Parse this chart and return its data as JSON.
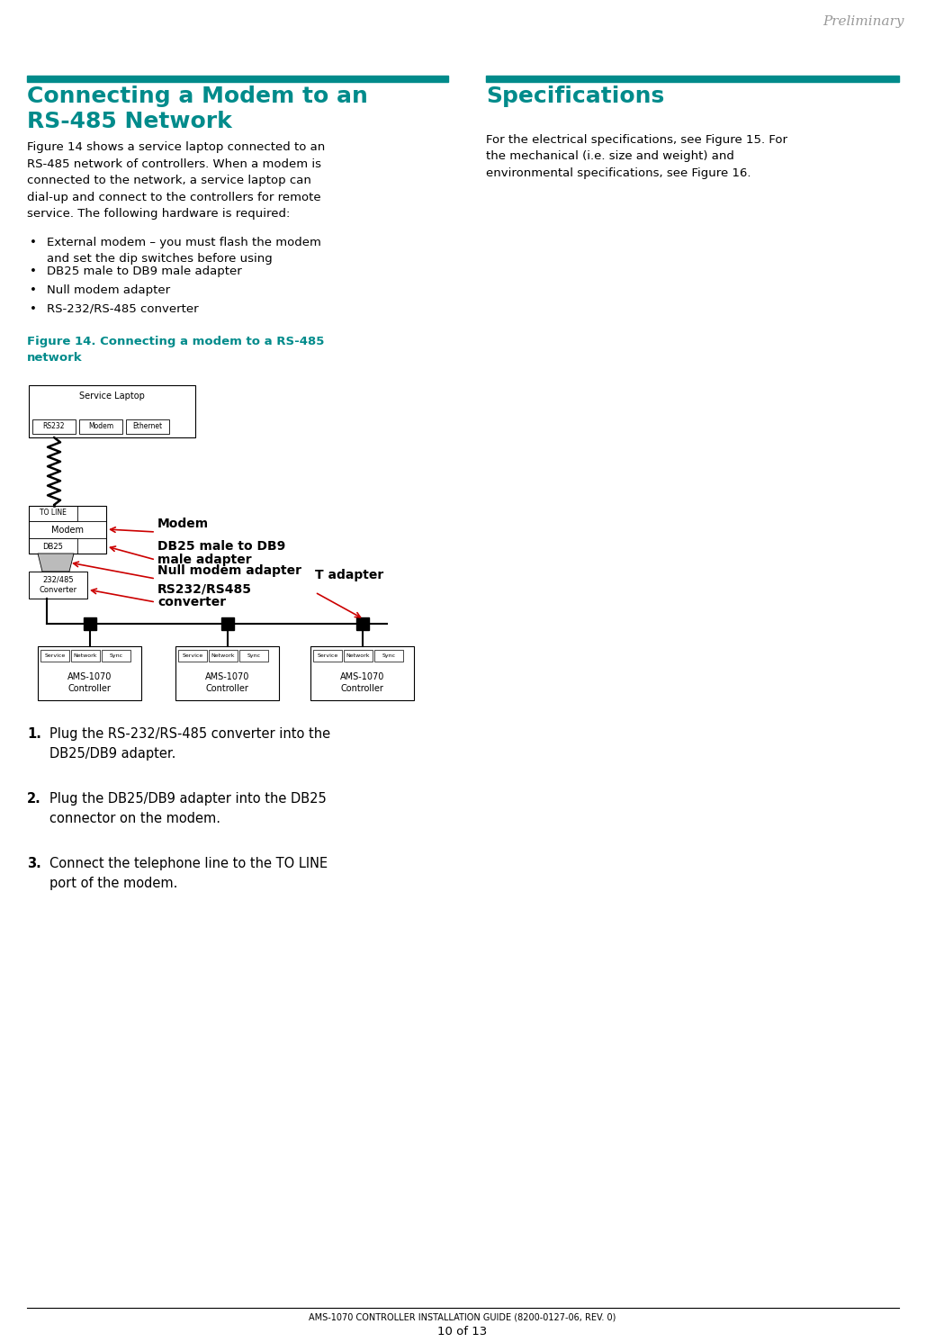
{
  "title_preliminary": "Preliminary",
  "section1_title_line1": "Connecting a Modem to an",
  "section1_title_line2": "RS-485 Network",
  "section1_body": "Figure 14 shows a service laptop connected to an\nRS-485 network of controllers. When a modem is\nconnected to the network, a service laptop can\ndial-up and connect to the controllers for remote\nservice. The following hardware is required:",
  "bullets": [
    "External modem – you must flash the modem\nand set the dip switches before using",
    "DB25 male to DB9 male adapter",
    "Null modem adapter",
    "RS-232/RS-485 converter"
  ],
  "fig_caption_line1": "Figure 14. Connecting a modem to a RS-485",
  "fig_caption_line2": "network",
  "section2_title": "Specifications",
  "section2_body": "For the electrical specifications, see Figure 15. For\nthe mechanical (i.e. size and weight) and\nenvironmental specifications, see Figure 16.",
  "steps": [
    "Plug the RS-232/RS-485 converter into the\nDB25/DB9 adapter.",
    "Plug the DB25/DB9 adapter into the DB25\nconnector on the modem.",
    "Connect the telephone line to the TO LINE\nport of the modem."
  ],
  "footer_line1": "AMS-1070 CONTROLLER INSTALLATION GUIDE (8200-0127-06, REV. 0)",
  "footer_line2": "10 of 13",
  "teal_color": "#008B8B",
  "bg_color": "#ffffff",
  "text_color": "#000000",
  "label_modem": "Modem",
  "label_db25": "DB25 male to DB9\nmale adapter",
  "label_null": "Null modem adapter",
  "label_rs232": "RS232/RS485\nconverter",
  "label_tadapter": "T adapter",
  "arrow_color": "#cc0000"
}
